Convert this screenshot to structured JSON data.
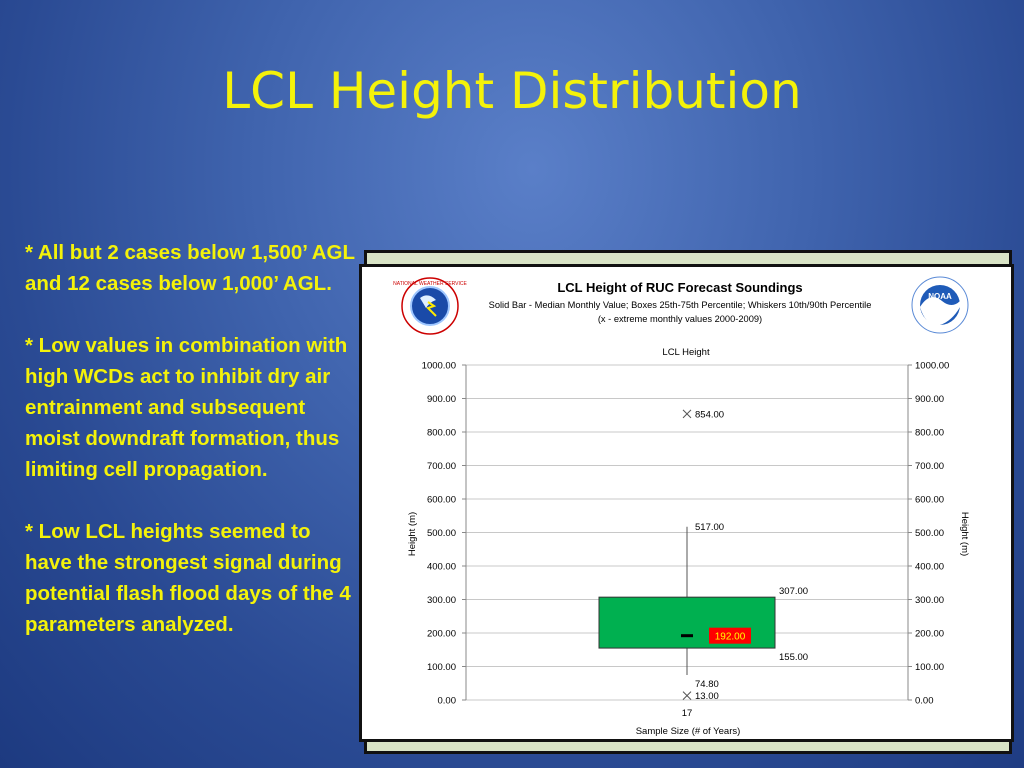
{
  "slide": {
    "title": "LCL Height Distribution",
    "bullets": [
      "* All but 2 cases below 1,500’ AGL and 12 cases below 1,000’ AGL.",
      "* Low values in combination with high WCDs act to inhibit dry air entrainment and subsequent moist downdraft formation, thus limiting cell propagation.",
      "* Low LCL heights seemed to have the strongest signal during potential flash flood days of the 4 parameters analyzed."
    ]
  },
  "chart_header": {
    "title": "LCL Height of RUC Forecast Soundings",
    "subtitle": "Solid Bar - Median Monthly Value; Boxes 25th-75th Percentile; Whiskers 10th/90th Percentile",
    "subtitle2": "(x - extreme monthly values 2000-2009)",
    "left_logo": "nws-logo",
    "right_logo": "noaa-logo",
    "noaa_text": "NOAA"
  },
  "chart_data": {
    "type": "box",
    "title": "LCL Height",
    "ylabel": "Height (m)",
    "y2label": "Height (m)",
    "xlabel": "Sample Size (# of Years)",
    "ylim": [
      0,
      1000
    ],
    "yticks": [
      "0.00",
      "100.00",
      "200.00",
      "300.00",
      "400.00",
      "500.00",
      "600.00",
      "700.00",
      "800.00",
      "900.00",
      "1000.00"
    ],
    "grid": true,
    "categories": [
      "17"
    ],
    "box": {
      "median": 192.0,
      "q1": 155.0,
      "q3": 307.0,
      "whisker_low": 74.8,
      "whisker_high": 517.0,
      "extreme_low": 13.0,
      "extreme_high": 854.0
    },
    "labels": {
      "median": "192.00",
      "q1": "155.00",
      "q3": "307.00",
      "whisker_low": "74.80",
      "whisker_high": "517.00",
      "extreme_low": "13.00",
      "extreme_high": "854.00"
    },
    "colors": {
      "box": "#00b050",
      "median_label_bg": "#ff0000",
      "median_label_text": "#ffff00"
    }
  }
}
